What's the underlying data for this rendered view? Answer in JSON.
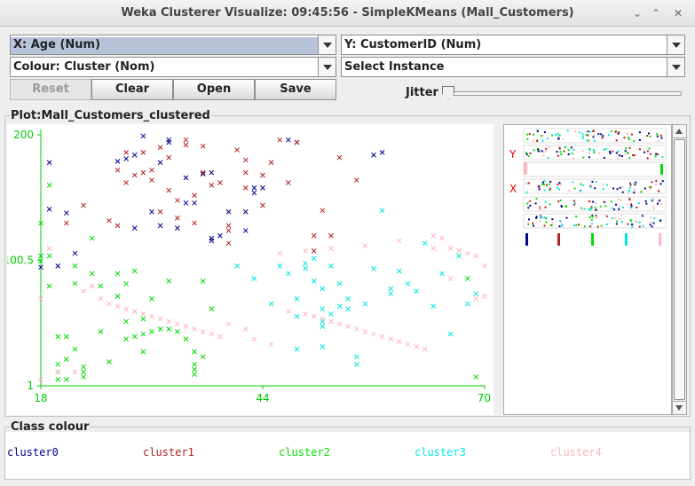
{
  "window": {
    "title": "Weka Clusterer Visualize: 09:45:56 - SimpleKMeans (Mall_Customers)",
    "controls": [
      "⌄",
      "⌃",
      "✕"
    ]
  },
  "controls": {
    "x_axis": "X: Age (Num)",
    "y_axis": "Y: CustomerID (Num)",
    "colour": "Colour: Cluster (Nom)",
    "instance": "Select Instance",
    "buttons": {
      "reset": "Reset",
      "clear": "Clear",
      "open": "Open",
      "save": "Save"
    },
    "jitter_label": "Jitter",
    "jitter_value": 0
  },
  "plot": {
    "title": "Plot:Mall_Customers_clustered",
    "x_ticks": [
      "18",
      "44",
      "70"
    ],
    "y_ticks": [
      "200",
      "100.5",
      "1"
    ],
    "axis_color": "#00cc00",
    "matrix_labels": {
      "y": "Y",
      "x": "X"
    }
  },
  "class_colour": {
    "title": "Class colour",
    "clusters": [
      {
        "name": "cluster0",
        "color": "#00008b"
      },
      {
        "name": "cluster1",
        "color": "#b22222"
      },
      {
        "name": "cluster2",
        "color": "#00dd00"
      },
      {
        "name": "cluster3",
        "color": "#00e5e5"
      },
      {
        "name": "cluster4",
        "color": "#ffb6c1"
      }
    ]
  },
  "chart_data": {
    "type": "scatter",
    "title": "Plot:Mall_Customers_clustered",
    "xlabel": "Age (Num)",
    "ylabel": "CustomerID (Num)",
    "xlim": [
      18,
      70
    ],
    "ylim": [
      1,
      200
    ],
    "series": [
      {
        "name": "cluster0",
        "color": "#00008b",
        "points": [
          [
            19,
            178
          ],
          [
            19,
            141
          ],
          [
            20,
            96
          ],
          [
            21,
            138
          ],
          [
            22,
            106
          ],
          [
            27,
            179
          ],
          [
            29,
            126
          ],
          [
            28,
            181
          ],
          [
            29,
            184
          ],
          [
            30,
            199
          ],
          [
            31,
            139
          ],
          [
            32,
            128
          ],
          [
            32,
            178
          ],
          [
            33,
            194
          ],
          [
            33,
            196
          ],
          [
            34,
            126
          ],
          [
            35,
            166
          ],
          [
            36,
            146
          ],
          [
            37,
            169
          ],
          [
            38,
            170
          ],
          [
            38,
            118
          ],
          [
            39,
            120
          ],
          [
            40,
            139
          ],
          [
            42,
            124
          ],
          [
            42,
            139
          ],
          [
            43,
            154
          ],
          [
            43,
            158
          ],
          [
            44,
            158
          ],
          [
            47,
            196
          ],
          [
            48,
            194
          ],
          [
            57,
            184
          ],
          [
            58,
            186
          ],
          [
            18,
            95
          ],
          [
            38,
            116
          ],
          [
            35,
            146
          ]
        ]
      },
      {
        "name": "cluster1",
        "color": "#b22222",
        "points": [
          [
            21,
            130
          ],
          [
            23,
            144
          ],
          [
            26,
            132
          ],
          [
            27,
            172
          ],
          [
            28,
            186
          ],
          [
            28,
            162
          ],
          [
            29,
            168
          ],
          [
            30,
            186
          ],
          [
            30,
            170
          ],
          [
            31,
            164
          ],
          [
            31,
            172
          ],
          [
            32,
            139
          ],
          [
            32,
            190
          ],
          [
            33,
            182
          ],
          [
            34,
            148
          ],
          [
            35,
            192
          ],
          [
            35,
            196
          ],
          [
            36,
            152
          ],
          [
            36,
            130
          ],
          [
            37,
            170
          ],
          [
            37,
            191
          ],
          [
            38,
            160
          ],
          [
            39,
            162
          ],
          [
            40,
            124
          ],
          [
            40,
            128
          ],
          [
            40,
            114
          ],
          [
            41,
            188
          ],
          [
            42,
            180
          ],
          [
            42,
            170
          ],
          [
            42,
            158
          ],
          [
            44,
            144
          ],
          [
            44,
            168
          ],
          [
            45,
            178
          ],
          [
            46,
            196
          ],
          [
            47,
            162
          ],
          [
            48,
            194
          ],
          [
            50,
            108
          ],
          [
            50,
            120
          ],
          [
            51,
            140
          ],
          [
            52,
            120
          ],
          [
            53,
            182
          ],
          [
            55,
            164
          ],
          [
            27,
            128
          ],
          [
            33,
            156
          ],
          [
            34,
            134
          ]
        ]
      },
      {
        "name": "cluster2",
        "color": "#00dd00",
        "points": [
          [
            18,
            104
          ],
          [
            18,
            100
          ],
          [
            19,
            104
          ],
          [
            19,
            80
          ],
          [
            20,
            18
          ],
          [
            20,
            6
          ],
          [
            20,
            12
          ],
          [
            21,
            40
          ],
          [
            21,
            22
          ],
          [
            21,
            6
          ],
          [
            22,
            30
          ],
          [
            22,
            82
          ],
          [
            22,
            96
          ],
          [
            23,
            12
          ],
          [
            23,
            16
          ],
          [
            23,
            8
          ],
          [
            24,
            118
          ],
          [
            24,
            90
          ],
          [
            25,
            44
          ],
          [
            25,
            80
          ],
          [
            26,
            20
          ],
          [
            27,
            72
          ],
          [
            27,
            90
          ],
          [
            28,
            52
          ],
          [
            28,
            38
          ],
          [
            29,
            92
          ],
          [
            29,
            40
          ],
          [
            30,
            28
          ],
          [
            30,
            42
          ],
          [
            30,
            54
          ],
          [
            31,
            70
          ],
          [
            31,
            44
          ],
          [
            32,
            46
          ],
          [
            33,
            46
          ],
          [
            33,
            84
          ],
          [
            34,
            44
          ],
          [
            35,
            38
          ],
          [
            36,
            28
          ],
          [
            36,
            18
          ],
          [
            36,
            14
          ],
          [
            36,
            10
          ],
          [
            37,
            24
          ],
          [
            38,
            62
          ],
          [
            37,
            84
          ],
          [
            18,
            130
          ],
          [
            19,
            160
          ],
          [
            20,
            40
          ],
          [
            28,
            82
          ],
          [
            68,
            86
          ],
          [
            69,
            8
          ]
        ]
      },
      {
        "name": "cluster3",
        "color": "#00e5e5",
        "points": [
          [
            41,
            96
          ],
          [
            43,
            86
          ],
          [
            45,
            66
          ],
          [
            46,
            96
          ],
          [
            47,
            90
          ],
          [
            48,
            70
          ],
          [
            48,
            56
          ],
          [
            48,
            30
          ],
          [
            49,
            94
          ],
          [
            49,
            98
          ],
          [
            50,
            102
          ],
          [
            50,
            84
          ],
          [
            51,
            78
          ],
          [
            51,
            62
          ],
          [
            51,
            52
          ],
          [
            51,
            48
          ],
          [
            51,
            32
          ],
          [
            52,
            96
          ],
          [
            52,
            58
          ],
          [
            53,
            82
          ],
          [
            53,
            64
          ],
          [
            54,
            70
          ],
          [
            54,
            62
          ],
          [
            55,
            18
          ],
          [
            55,
            24
          ],
          [
            56,
            66
          ],
          [
            57,
            94
          ],
          [
            58,
            140
          ],
          [
            59,
            78
          ],
          [
            59,
            74
          ],
          [
            60,
            92
          ],
          [
            61,
            82
          ],
          [
            62,
            76
          ],
          [
            63,
            114
          ],
          [
            64,
            64
          ],
          [
            65,
            90
          ],
          [
            66,
            42
          ],
          [
            67,
            104
          ],
          [
            68,
            66
          ],
          [
            69,
            74
          ]
        ]
      },
      {
        "name": "cluster4",
        "color": "#ffb6c1",
        "points": [
          [
            18,
            6
          ],
          [
            18,
            70
          ],
          [
            19,
            110
          ],
          [
            20,
            12
          ],
          [
            22,
            12
          ],
          [
            23,
            76
          ],
          [
            24,
            80
          ],
          [
            25,
            70
          ],
          [
            26,
            66
          ],
          [
            27,
            64
          ],
          [
            28,
            62
          ],
          [
            29,
            60
          ],
          [
            30,
            58
          ],
          [
            31,
            56
          ],
          [
            32,
            54
          ],
          [
            33,
            52
          ],
          [
            34,
            50
          ],
          [
            35,
            48
          ],
          [
            36,
            46
          ],
          [
            37,
            44
          ],
          [
            38,
            42
          ],
          [
            39,
            40
          ],
          [
            40,
            50
          ],
          [
            42,
            46
          ],
          [
            43,
            38
          ],
          [
            45,
            34
          ],
          [
            47,
            60
          ],
          [
            49,
            58
          ],
          [
            50,
            56
          ],
          [
            51,
            54
          ],
          [
            52,
            52
          ],
          [
            53,
            50
          ],
          [
            54,
            48
          ],
          [
            55,
            46
          ],
          [
            56,
            44
          ],
          [
            57,
            42
          ],
          [
            58,
            40
          ],
          [
            59,
            38
          ],
          [
            60,
            36
          ],
          [
            61,
            34
          ],
          [
            62,
            32
          ],
          [
            63,
            30
          ],
          [
            64,
            120
          ],
          [
            65,
            118
          ],
          [
            66,
            110
          ],
          [
            67,
            108
          ],
          [
            68,
            106
          ],
          [
            69,
            104
          ],
          [
            70,
            72
          ],
          [
            69,
            70
          ],
          [
            66,
            86
          ],
          [
            70,
            96
          ],
          [
            64,
            110
          ],
          [
            60,
            116
          ],
          [
            56,
            112
          ],
          [
            52,
            110
          ],
          [
            49,
            108
          ],
          [
            46,
            106
          ]
        ]
      }
    ]
  }
}
